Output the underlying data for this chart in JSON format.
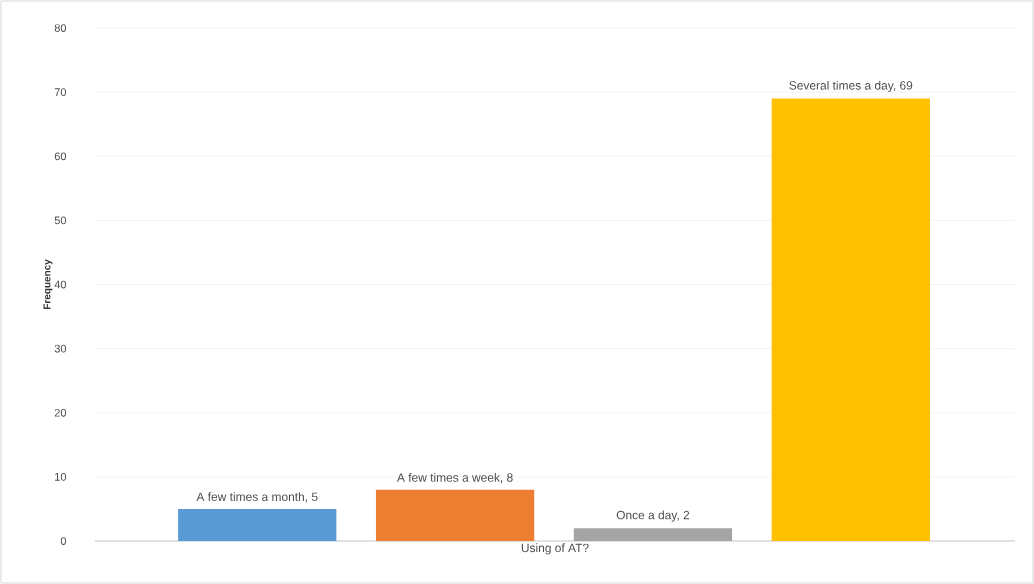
{
  "chart_data": {
    "type": "bar",
    "xlabel": "Using of AT?",
    "ylabel": "Frequency",
    "categories": [
      null,
      null,
      null,
      null
    ],
    "values": [
      5,
      8,
      2,
      69
    ],
    "colors": [
      "#5b9bd5",
      "#ed7d31",
      "#a5a5a5",
      "#ffc000"
    ],
    "value_labels": [
      "A few times a month, 5",
      "A few times a week, 8",
      "Once a day, 2",
      "Several times a day, 69"
    ],
    "ylim": [
      0,
      80
    ],
    "yticks": [
      0,
      10,
      20,
      30,
      40,
      50,
      60,
      70,
      80
    ],
    "grid": "y"
  }
}
